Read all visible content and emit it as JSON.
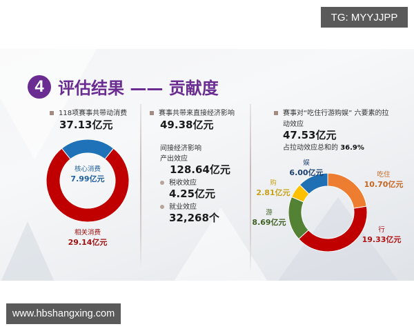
{
  "watermarks": {
    "top": "TG: MYYJJPP",
    "bottom": "www.hbshangxing.com"
  },
  "slide": {
    "badge_number": "4",
    "title": "评估结果 —— 贡献度",
    "colors": {
      "title_purple": "#6a2c91",
      "core_blue": "#1f72b8",
      "related_red": "#c00000",
      "eat_orange": "#ed7d31",
      "travel_red": "#c00000",
      "tour_green": "#548235",
      "shop_yellow": "#ffc000",
      "ent_blue": "#1f6fb5"
    },
    "col1": {
      "heading": "118项赛事共带动消费",
      "total": "37.13亿元",
      "core_name": "核心消费",
      "core_value": "7.99亿元",
      "related_name": "相关消费",
      "related_value": "29.14亿元"
    },
    "col2": {
      "heading": "赛事共带来直接经济影响",
      "direct_value": "49.38亿元",
      "indirect_heading": "间接经济影响",
      "output_label": "产出效应",
      "output_value": "128.64亿元",
      "tax_label": "税收效应",
      "tax_value": "4.25亿元",
      "jobs_label": "就业效应",
      "jobs_value": "32,268个"
    },
    "col3": {
      "heading_line1": "赛事对“吃住行游购娱” 六要素的拉",
      "heading_line2": "动效应",
      "total": "47.53亿元",
      "share_prefix": "占拉动效应总和的",
      "share_value": "36.9%",
      "segments": [
        {
          "name": "吃住",
          "value": "10.70亿元"
        },
        {
          "name": "行",
          "value": "19.33亿元"
        },
        {
          "name": "游",
          "value": "8.69亿元"
        },
        {
          "name": "购",
          "value": "2.81亿元"
        },
        {
          "name": "娱",
          "value": "6.00亿元"
        }
      ]
    }
  },
  "chart_data": [
    {
      "type": "pie",
      "title": "118项赛事共带动消费 37.13亿元",
      "categories": [
        "核心消费",
        "相关消费"
      ],
      "values": [
        7.99,
        29.14
      ],
      "unit": "亿元",
      "colors": [
        "#1f72b8",
        "#c00000"
      ],
      "donut": true
    },
    {
      "type": "pie",
      "title": "赛事对“吃住行游购娱”六要素的拉动效应 47.53亿元",
      "categories": [
        "吃住",
        "行",
        "游",
        "购",
        "娱"
      ],
      "values": [
        10.7,
        19.33,
        8.69,
        2.81,
        6.0
      ],
      "unit": "亿元",
      "colors": [
        "#ed7d31",
        "#c00000",
        "#548235",
        "#ffc000",
        "#1f6fb5"
      ],
      "donut": true,
      "annotation": "占拉动效应总和的 36.9%"
    }
  ]
}
